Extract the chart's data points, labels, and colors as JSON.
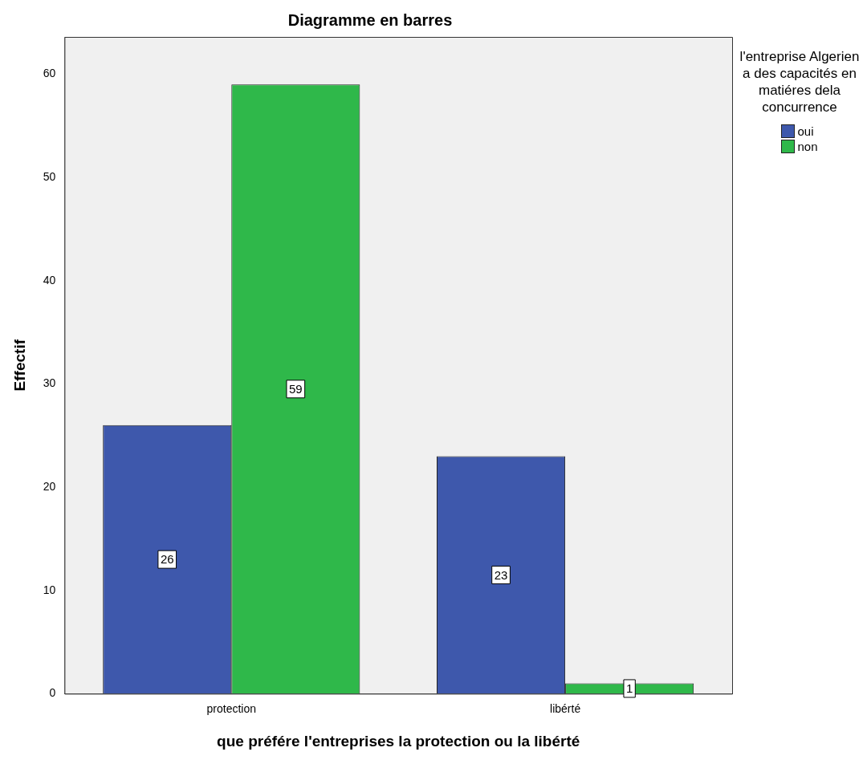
{
  "chart_data": {
    "type": "bar",
    "title": "Diagramme en barres",
    "xlabel": "que préfére l'entreprises la protection ou la libérté",
    "ylabel": "Effectif",
    "legend_title": "l'entreprise Algerien a des capacités en matiéres dela concurrence",
    "categories": [
      "protection",
      "libérté"
    ],
    "series": [
      {
        "name": "oui",
        "color": "#3e58ac",
        "values": [
          26,
          23
        ]
      },
      {
        "name": "non",
        "color": "#2fb84a",
        "values": [
          59,
          1
        ]
      }
    ],
    "ylim": [
      0,
      63.6
    ],
    "yticks": [
      0,
      10,
      20,
      30,
      40,
      50,
      60
    ],
    "grid": false,
    "legend": "top right",
    "data_labels": true
  }
}
